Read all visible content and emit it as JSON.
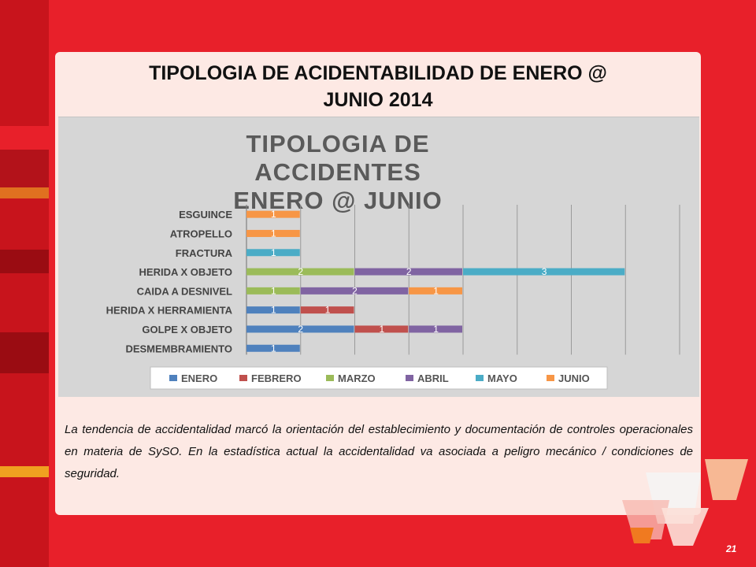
{
  "slide": {
    "title_line1": "TIPOLOGIA DE ACIDENTABILIDAD DE ENERO @",
    "title_line2": "JUNIO 2014",
    "caption": "La tendencia de accidentalidad marcó la orientación del establecimiento y documentación de controles operacionales en materia de SySO. En la estadística actual la accidentalidad va asociada a peligro mecánico / condiciones de seguridad.",
    "page_number": "21"
  },
  "colors": {
    "background": "#e8202a",
    "card": "#fde9e4",
    "chart_background": "#d6d6d6"
  },
  "chart_data": {
    "type": "bar",
    "orientation": "horizontal",
    "stacked": true,
    "title_line1": "TIPOLOGIA DE ACCIDENTES",
    "title_line2": "ENERO @ JUNIO",
    "categories": [
      "ESGUINCE",
      "ATROPELLO",
      "FRACTURA",
      "HERIDA X OBJETO",
      "CAIDA A DESNIVEL",
      "HERIDA X HERRAMIENTA",
      "GOLPE X OBJETO",
      "DESMEMBRAMIENTO"
    ],
    "series": [
      {
        "name": "ENERO",
        "color": "#4f81bd",
        "values": [
          0,
          0,
          0,
          0,
          0,
          1,
          2,
          1
        ]
      },
      {
        "name": "FEBRERO",
        "color": "#c0504d",
        "values": [
          0,
          0,
          0,
          0,
          0,
          1,
          1,
          0
        ]
      },
      {
        "name": "MARZO",
        "color": "#9bbb59",
        "values": [
          0,
          0,
          0,
          2,
          1,
          0,
          0,
          0
        ]
      },
      {
        "name": "ABRIL",
        "color": "#8064a2",
        "values": [
          0,
          0,
          0,
          2,
          2,
          0,
          1,
          0
        ]
      },
      {
        "name": "MAYO",
        "color": "#4bacc6",
        "values": [
          0,
          0,
          1,
          3,
          0,
          0,
          0,
          0
        ]
      },
      {
        "name": "JUNIO",
        "color": "#f79646",
        "values": [
          1,
          1,
          0,
          0,
          1,
          0,
          0,
          0
        ]
      }
    ],
    "xlim": [
      0,
      8
    ],
    "grid": true,
    "legend": "bottom"
  }
}
